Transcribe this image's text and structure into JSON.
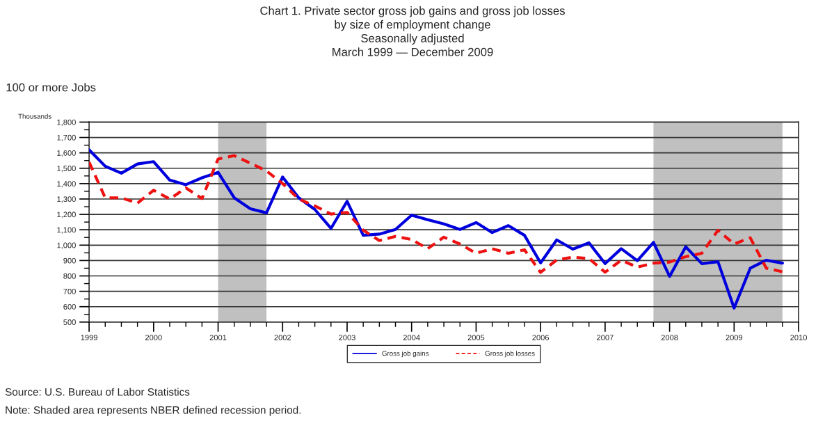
{
  "chart_data": {
    "type": "line",
    "title": "Chart 1. Private sector gross job gains and gross job losses\nby size of employment change\nSeasonally adjusted\nMarch 1999 — December 2009",
    "subtitle": "100 or more Jobs",
    "ylabel": "Thousands",
    "x": [
      1999.0,
      1999.25,
      1999.5,
      1999.75,
      2000.0,
      2000.25,
      2000.5,
      2000.75,
      2001.0,
      2001.25,
      2001.5,
      2001.75,
      2002.0,
      2002.25,
      2002.5,
      2002.75,
      2003.0,
      2003.25,
      2003.5,
      2003.75,
      2004.0,
      2004.25,
      2004.5,
      2004.75,
      2005.0,
      2005.25,
      2005.5,
      2005.75,
      2006.0,
      2006.25,
      2006.5,
      2006.75,
      2007.0,
      2007.25,
      2007.5,
      2007.75,
      2008.0,
      2008.25,
      2008.5,
      2008.75,
      2009.0,
      2009.25,
      2009.5,
      2009.75
    ],
    "series": [
      {
        "name": "Gross job gains",
        "color": "#0000dd",
        "line_style": "solid",
        "values": [
          1620,
          1513,
          1468,
          1528,
          1543,
          1423,
          1393,
          1438,
          1473,
          1308,
          1237,
          1210,
          1443,
          1308,
          1232,
          1109,
          1285,
          1064,
          1072,
          1102,
          1195,
          1165,
          1138,
          1102,
          1147,
          1082,
          1127,
          1064,
          885,
          1034,
          974,
          1015,
          880,
          977,
          899,
          1018,
          797,
          989,
          880,
          892,
          591,
          850,
          902,
          883
        ]
      },
      {
        "name": "Gross job losses",
        "color": "#ee1111",
        "line_style": "dashed",
        "values": [
          1540,
          1308,
          1308,
          1273,
          1357,
          1300,
          1372,
          1303,
          1560,
          1582,
          1533,
          1483,
          1400,
          1300,
          1255,
          1202,
          1213,
          1097,
          1030,
          1057,
          1037,
          977,
          1052,
          1007,
          947,
          977,
          947,
          970,
          823,
          904,
          922,
          913,
          824,
          902,
          857,
          883,
          890,
          925,
          947,
          1097,
          1007,
          1048,
          850,
          827
        ]
      }
    ],
    "xlim": [
      1999,
      2010
    ],
    "xticks": [
      1999,
      {
        "value": 1999.25,
        "label": null
      },
      {
        "value": 1999.5,
        "label": null
      },
      {
        "value": 1999.75,
        "label": null
      },
      2000,
      {
        "value": 2000.25,
        "label": null
      },
      {
        "value": 2000.5,
        "label": null
      },
      {
        "value": 2000.75,
        "label": null
      },
      2001,
      {
        "value": 2001.25,
        "label": null
      },
      {
        "value": 2001.5,
        "label": null
      },
      {
        "value": 2001.75,
        "label": null
      },
      2002,
      {
        "value": 2002.25,
        "label": null
      },
      {
        "value": 2002.5,
        "label": null
      },
      {
        "value": 2002.75,
        "label": null
      },
      2003,
      {
        "value": 2003.25,
        "label": null
      },
      {
        "value": 2003.5,
        "label": null
      },
      {
        "value": 2003.75,
        "label": null
      },
      2004,
      {
        "value": 2004.25,
        "label": null
      },
      {
        "value": 2004.5,
        "label": null
      },
      {
        "value": 2004.75,
        "label": null
      },
      2005,
      {
        "value": 2005.25,
        "label": null
      },
      {
        "value": 2005.5,
        "label": null
      },
      {
        "value": 2005.75,
        "label": null
      },
      2006,
      {
        "value": 2006.25,
        "label": null
      },
      {
        "value": 2006.5,
        "label": null
      },
      {
        "value": 2006.75,
        "label": null
      },
      2007,
      {
        "value": 2007.25,
        "label": null
      },
      {
        "value": 2007.5,
        "label": null
      },
      {
        "value": 2007.75,
        "label": null
      },
      2008,
      {
        "value": 2008.25,
        "label": null
      },
      {
        "value": 2008.5,
        "label": null
      },
      {
        "value": 2008.75,
        "label": null
      },
      2009,
      {
        "value": 2009.25,
        "label": null
      },
      {
        "value": 2009.5,
        "label": null
      },
      {
        "value": 2009.75,
        "label": null
      },
      2010
    ],
    "ylim": [
      500,
      1800
    ],
    "yticks": [
      500,
      {
        "value": 550,
        "label": null
      },
      600,
      {
        "value": 650,
        "label": null
      },
      700,
      {
        "value": 750,
        "label": null
      },
      800,
      {
        "value": 850,
        "label": null
      },
      900,
      {
        "value": 950,
        "label": null
      },
      {
        "value": 1000,
        "label": "1,000"
      },
      {
        "value": 1050,
        "label": null
      },
      {
        "value": 1100,
        "label": "1,100"
      },
      {
        "value": 1150,
        "label": null
      },
      {
        "value": 1200,
        "label": "1,200"
      },
      {
        "value": 1250,
        "label": null
      },
      {
        "value": 1300,
        "label": "1,300"
      },
      {
        "value": 1350,
        "label": null
      },
      {
        "value": 1400,
        "label": "1,400"
      },
      {
        "value": 1450,
        "label": null
      },
      {
        "value": 1500,
        "label": "1,500"
      },
      {
        "value": 1550,
        "label": null
      },
      {
        "value": 1600,
        "label": "1,600"
      },
      {
        "value": 1650,
        "label": null
      },
      {
        "value": 1700,
        "label": "1,700"
      },
      {
        "value": 1750,
        "label": null
      },
      {
        "value": 1800,
        "label": "1,800"
      }
    ],
    "bands": [
      {
        "axis": "x",
        "from": 2001.0,
        "to": 2001.75,
        "color": "#c0c0c0"
      },
      {
        "axis": "x",
        "from": 2007.75,
        "to": 2009.75,
        "color": "#c0c0c0"
      }
    ],
    "grid": "y",
    "legend": "bottom",
    "annotations": [
      "Source: U.S. Bureau of Labor Statistics",
      "Note: Shaded area represents NBER defined recession period."
    ]
  }
}
